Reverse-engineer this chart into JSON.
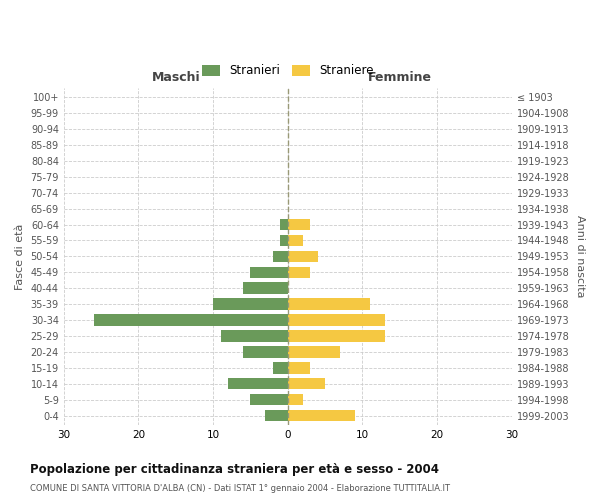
{
  "age_groups": [
    "100+",
    "95-99",
    "90-94",
    "85-89",
    "80-84",
    "75-79",
    "70-74",
    "65-69",
    "60-64",
    "55-59",
    "50-54",
    "45-49",
    "40-44",
    "35-39",
    "30-34",
    "25-29",
    "20-24",
    "15-19",
    "10-14",
    "5-9",
    "0-4"
  ],
  "birth_years": [
    "≤ 1903",
    "1904-1908",
    "1909-1913",
    "1914-1918",
    "1919-1923",
    "1924-1928",
    "1929-1933",
    "1934-1938",
    "1939-1943",
    "1944-1948",
    "1949-1953",
    "1954-1958",
    "1959-1963",
    "1964-1968",
    "1969-1973",
    "1974-1978",
    "1979-1983",
    "1984-1988",
    "1989-1993",
    "1994-1998",
    "1999-2003"
  ],
  "maschi": [
    0,
    0,
    0,
    0,
    0,
    0,
    0,
    0,
    1,
    1,
    2,
    5,
    6,
    10,
    26,
    9,
    6,
    2,
    8,
    5,
    3
  ],
  "femmine": [
    0,
    0,
    0,
    0,
    0,
    0,
    0,
    0,
    3,
    2,
    4,
    3,
    0,
    11,
    13,
    13,
    7,
    3,
    5,
    2,
    9
  ],
  "maschi_color": "#6a9a5a",
  "femmine_color": "#f5c842",
  "title": "Popolazione per cittadinanza straniera per età e sesso - 2004",
  "subtitle": "COMUNE DI SANTA VITTORIA D'ALBA (CN) - Dati ISTAT 1° gennaio 2004 - Elaborazione TUTTITALIA.IT",
  "xlabel_left": "Maschi",
  "xlabel_right": "Femmine",
  "ylabel_left": "Fasce di età",
  "ylabel_right": "Anni di nascita",
  "xlim": 30,
  "legend_stranieri": "Stranieri",
  "legend_straniere": "Straniere",
  "background_color": "#ffffff",
  "grid_color": "#cccccc"
}
